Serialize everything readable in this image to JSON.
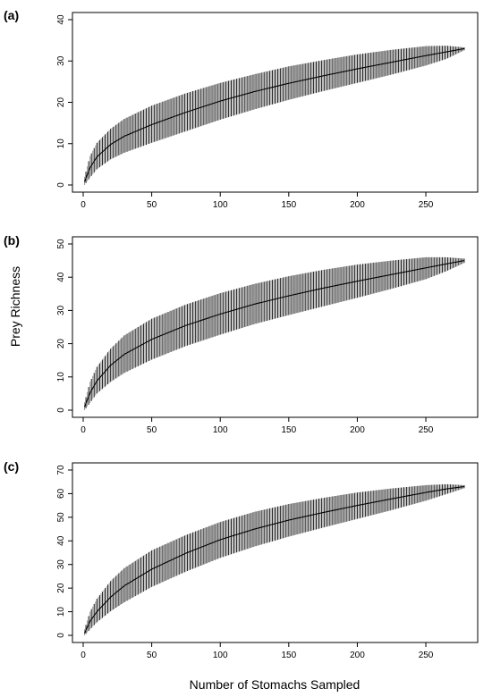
{
  "figure": {
    "ylabel": "Prey Richness",
    "xlabel": "Number of Stomachs Sampled"
  },
  "chart_data": [
    {
      "type": "line",
      "panel_label": "(a)",
      "xlim": [
        0,
        280
      ],
      "ylim": [
        0,
        40
      ],
      "x_ticks": [
        0,
        50,
        100,
        150,
        200,
        250
      ],
      "y_ticks": [
        0,
        10,
        20,
        30,
        40
      ],
      "x": [
        1,
        5,
        10,
        20,
        30,
        50,
        75,
        100,
        125,
        150,
        175,
        200,
        225,
        250,
        265,
        278
      ],
      "mean": [
        0.8,
        4.2,
        6.8,
        9.8,
        11.8,
        14.6,
        17.6,
        20.3,
        22.6,
        24.6,
        26.4,
        28.1,
        29.7,
        31.3,
        32.2,
        33.0
      ],
      "upper": [
        2.0,
        7.0,
        10.2,
        13.6,
        16.0,
        19.2,
        22.2,
        24.7,
        26.8,
        28.7,
        30.2,
        31.6,
        32.7,
        33.6,
        33.7,
        33.3
      ],
      "lower": [
        0.0,
        1.8,
        3.8,
        6.2,
        7.8,
        10.2,
        13.0,
        15.8,
        18.3,
        20.6,
        22.7,
        24.7,
        26.7,
        28.9,
        30.5,
        32.6
      ],
      "colors": {
        "mean": "#000000",
        "band": "#222222",
        "band_fill": "#9a9a9a"
      }
    },
    {
      "type": "line",
      "panel_label": "(b)",
      "xlim": [
        0,
        280
      ],
      "ylim": [
        0,
        50
      ],
      "x_ticks": [
        0,
        50,
        100,
        150,
        200,
        250
      ],
      "y_ticks": [
        0,
        10,
        20,
        30,
        40,
        50
      ],
      "x": [
        1,
        5,
        10,
        20,
        30,
        50,
        75,
        100,
        125,
        150,
        175,
        200,
        225,
        250,
        265,
        278
      ],
      "mean": [
        1.0,
        5.2,
        8.8,
        13.5,
        16.8,
        21.3,
        25.5,
        28.9,
        31.9,
        34.4,
        36.7,
        38.8,
        40.8,
        42.8,
        44.0,
        45.0
      ],
      "upper": [
        2.4,
        8.5,
        13.0,
        18.5,
        22.5,
        27.5,
        31.8,
        35.2,
        38.0,
        40.3,
        42.2,
        43.8,
        45.0,
        46.0,
        46.0,
        45.6
      ],
      "lower": [
        0.0,
        2.2,
        5.0,
        8.5,
        11.2,
        15.2,
        19.3,
        22.7,
        25.9,
        28.6,
        31.2,
        33.8,
        36.5,
        39.4,
        41.8,
        44.3
      ],
      "colors": {
        "mean": "#000000",
        "band": "#222222",
        "band_fill": "#9a9a9a"
      }
    },
    {
      "type": "line",
      "panel_label": "(c)",
      "xlim": [
        0,
        280
      ],
      "ylim": [
        0,
        70
      ],
      "x_ticks": [
        0,
        50,
        100,
        150,
        200,
        250
      ],
      "y_ticks": [
        0,
        10,
        20,
        30,
        40,
        50,
        60,
        70
      ],
      "x": [
        1,
        5,
        10,
        20,
        30,
        50,
        75,
        100,
        125,
        150,
        175,
        200,
        225,
        250,
        265,
        278
      ],
      "mean": [
        1.0,
        6.0,
        10.0,
        16.2,
        21.0,
        28.0,
        34.8,
        40.5,
        45.0,
        48.8,
        52.0,
        55.0,
        57.8,
        60.5,
        62.0,
        63.0
      ],
      "upper": [
        2.6,
        10.0,
        15.5,
        23.0,
        28.5,
        36.0,
        42.5,
        48.0,
        52.3,
        55.6,
        58.2,
        60.5,
        62.2,
        63.6,
        64.0,
        63.6
      ],
      "lower": [
        0.0,
        2.5,
        5.5,
        10.2,
        14.0,
        20.5,
        27.0,
        32.8,
        37.6,
        41.8,
        45.6,
        49.3,
        53.0,
        57.0,
        59.8,
        62.3
      ],
      "colors": {
        "mean": "#000000",
        "band": "#222222",
        "band_fill": "#9a9a9a"
      }
    }
  ]
}
